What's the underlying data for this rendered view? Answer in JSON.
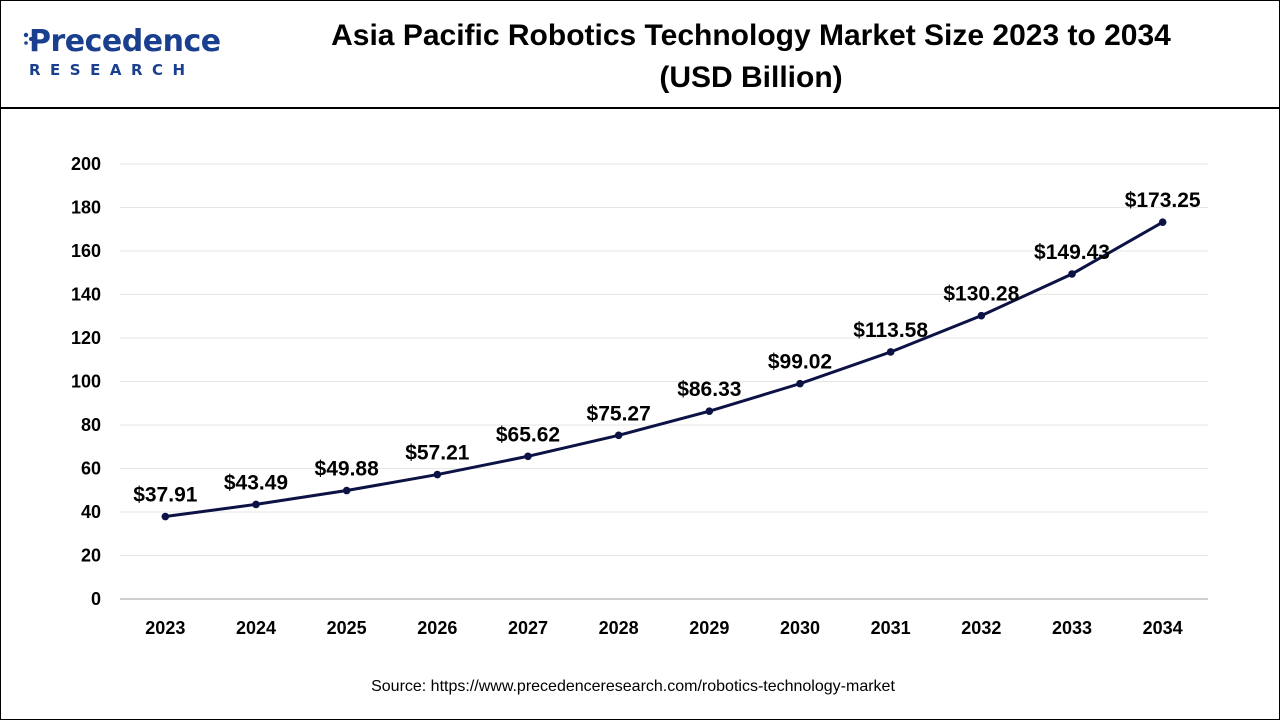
{
  "header": {
    "logo_word": "Precedence",
    "logo_sub": "RESEARCH",
    "title_line1": "Asia Pacific Robotics Technology Market Size 2023 to 2034",
    "title_line2": "(USD Billion)"
  },
  "source": "Source: https://www.precedenceresearch.com/robotics-technology-market",
  "colors": {
    "brand": "#1a3f8f",
    "line": "#0d1245",
    "grid": "#e6e6e6"
  },
  "chart_data": {
    "type": "line",
    "title": "Asia Pacific Robotics Technology Market Size 2023 to 2034 (USD Billion)",
    "categories": [
      "2023",
      "2024",
      "2025",
      "2026",
      "2027",
      "2028",
      "2029",
      "2030",
      "2031",
      "2032",
      "2033",
      "2034"
    ],
    "values": [
      37.91,
      43.49,
      49.88,
      57.21,
      65.62,
      75.27,
      86.33,
      99.02,
      113.58,
      130.28,
      149.43,
      173.25
    ],
    "data_labels": [
      "$37.91",
      "$43.49",
      "$49.88",
      "$57.21",
      "$65.62",
      "$75.27",
      "$86.33",
      "$99.02",
      "$113.58",
      "$130.28",
      "$149.43",
      "$173.25"
    ],
    "yticks": [
      "0",
      "20",
      "40",
      "60",
      "80",
      "100",
      "120",
      "140",
      "160",
      "180",
      "200"
    ],
    "ylim": [
      0,
      200
    ],
    "xlabel": "",
    "ylabel": "",
    "grid": true,
    "legend": "none"
  }
}
